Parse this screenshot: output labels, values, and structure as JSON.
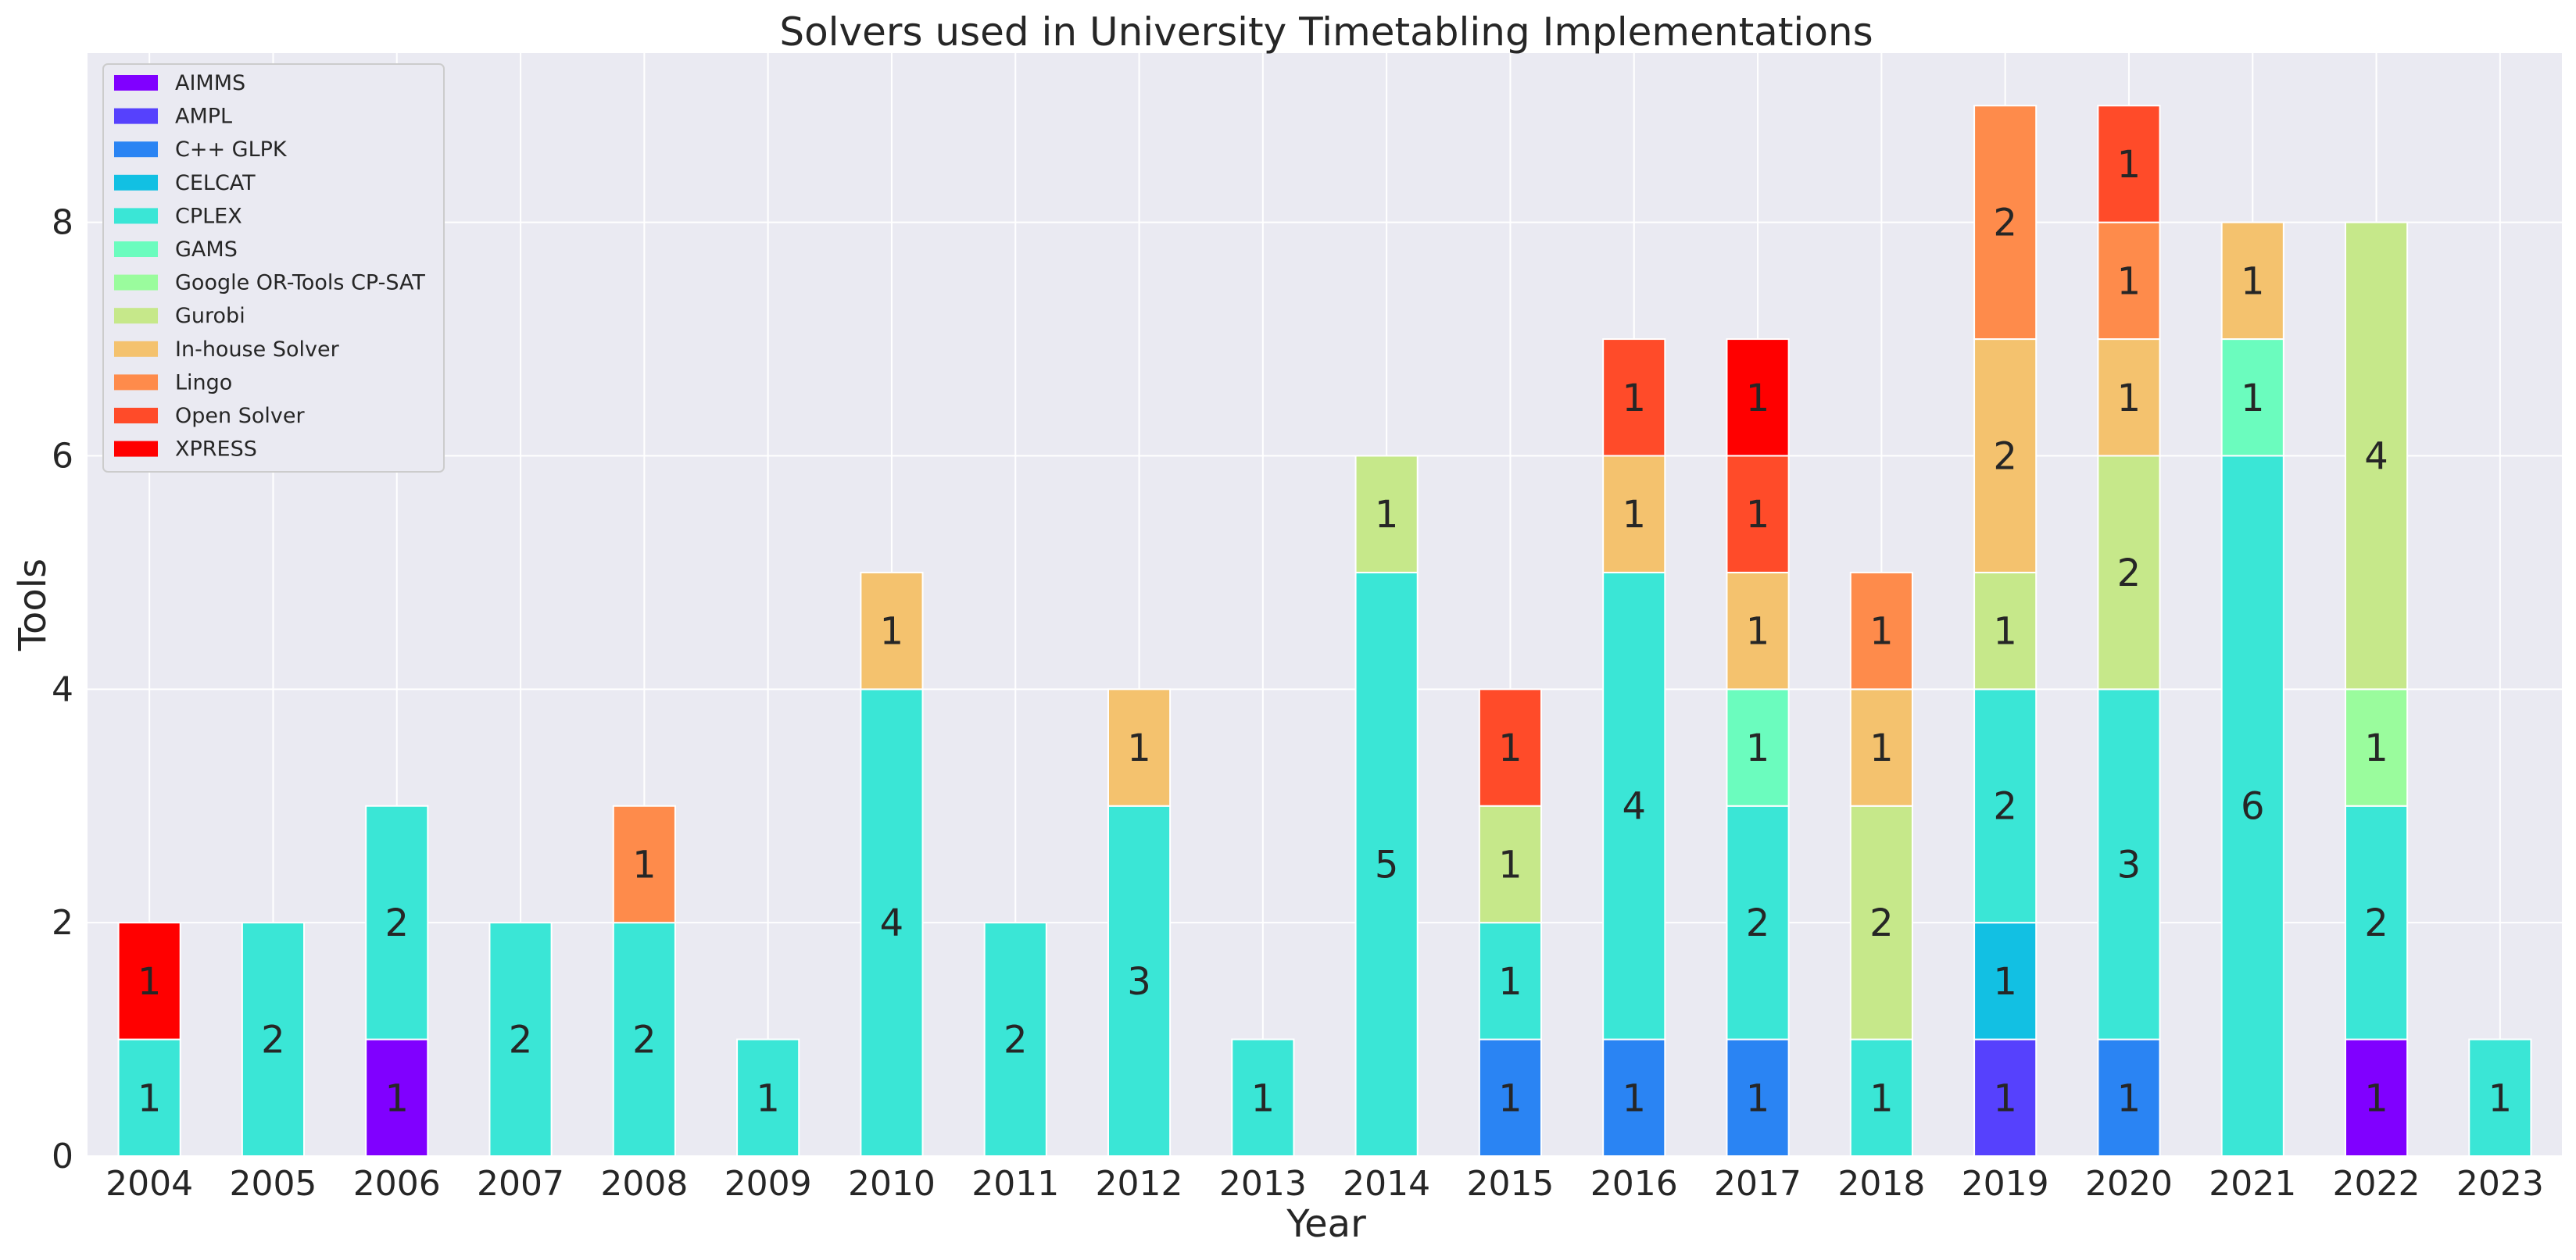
{
  "chart_data": {
    "type": "bar",
    "stacked": true,
    "title": "Solvers used in University Timetabling Implementations",
    "xlabel": "Year",
    "ylabel": "Tools",
    "ylim": [
      0,
      9.45
    ],
    "yticks": [
      0,
      2,
      4,
      6,
      8
    ],
    "grid": true,
    "legend_position": "top-left",
    "categories": [
      "2004",
      "2005",
      "2006",
      "2007",
      "2008",
      "2009",
      "2010",
      "2011",
      "2012",
      "2013",
      "2014",
      "2015",
      "2016",
      "2017",
      "2018",
      "2019",
      "2020",
      "2021",
      "2022",
      "2023"
    ],
    "series": [
      {
        "name": "AIMMS",
        "color": "#8000ff",
        "values": [
          0,
          0,
          1,
          0,
          0,
          0,
          0,
          0,
          0,
          0,
          0,
          0,
          0,
          0,
          0,
          0,
          0,
          0,
          1,
          0
        ]
      },
      {
        "name": "AMPL",
        "color": "#5641fd",
        "values": [
          0,
          0,
          0,
          0,
          0,
          0,
          0,
          0,
          0,
          0,
          0,
          0,
          0,
          0,
          0,
          1,
          0,
          0,
          0,
          0
        ]
      },
      {
        "name": "C++ GLPK",
        "color": "#2a84f3",
        "values": [
          0,
          0,
          0,
          0,
          0,
          0,
          0,
          0,
          0,
          0,
          0,
          1,
          1,
          1,
          0,
          0,
          1,
          0,
          0,
          0
        ]
      },
      {
        "name": "CELCAT",
        "color": "#12c0e3",
        "values": [
          0,
          0,
          0,
          0,
          0,
          0,
          0,
          0,
          0,
          0,
          0,
          0,
          0,
          0,
          0,
          1,
          0,
          0,
          0,
          0
        ]
      },
      {
        "name": "CPLEX",
        "color": "#3ae6d6",
        "values": [
          1,
          2,
          2,
          2,
          2,
          1,
          4,
          2,
          3,
          1,
          5,
          1,
          4,
          2,
          1,
          2,
          3,
          6,
          2,
          1
        ]
      },
      {
        "name": "GAMS",
        "color": "#6bfcbe",
        "values": [
          0,
          0,
          0,
          0,
          0,
          0,
          0,
          0,
          0,
          0,
          0,
          0,
          0,
          1,
          0,
          0,
          0,
          1,
          0,
          0
        ]
      },
      {
        "name": "Google OR-Tools CP-SAT",
        "color": "#9afc9d",
        "values": [
          0,
          0,
          0,
          0,
          0,
          0,
          0,
          0,
          0,
          0,
          0,
          0,
          0,
          0,
          0,
          0,
          0,
          0,
          1,
          0
        ]
      },
      {
        "name": "Gurobi",
        "color": "#c6e88a",
        "values": [
          0,
          0,
          0,
          0,
          0,
          0,
          0,
          0,
          0,
          0,
          1,
          1,
          0,
          0,
          2,
          1,
          2,
          0,
          4,
          0
        ]
      },
      {
        "name": "In-house Solver",
        "color": "#f4c26e",
        "values": [
          0,
          0,
          0,
          0,
          0,
          0,
          1,
          0,
          1,
          0,
          0,
          0,
          1,
          1,
          1,
          2,
          1,
          1,
          0,
          0
        ]
      },
      {
        "name": "Lingo",
        "color": "#fe8b4b",
        "values": [
          0,
          0,
          0,
          0,
          1,
          0,
          0,
          0,
          0,
          0,
          0,
          0,
          0,
          0,
          1,
          2,
          1,
          0,
          0,
          0
        ]
      },
      {
        "name": "Open Solver",
        "color": "#ff4b29",
        "values": [
          0,
          0,
          0,
          0,
          0,
          0,
          0,
          0,
          0,
          0,
          0,
          1,
          1,
          1,
          0,
          0,
          1,
          0,
          0,
          0
        ]
      },
      {
        "name": "XPRESS",
        "color": "#ff0000",
        "values": [
          1,
          0,
          0,
          0,
          0,
          0,
          0,
          0,
          0,
          0,
          0,
          0,
          0,
          1,
          0,
          0,
          0,
          0,
          0,
          0
        ]
      }
    ]
  },
  "style": {
    "plot_background": "#eaeaf2",
    "grid_color": "#ffffff",
    "text_color": "#262626"
  }
}
